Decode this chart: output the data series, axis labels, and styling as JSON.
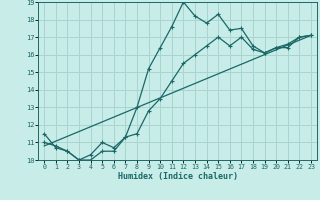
{
  "title": "",
  "xlabel": "Humidex (Indice chaleur)",
  "ylabel": "",
  "bg_color": "#c8ece8",
  "line_color": "#1a6868",
  "grid_color": "#aad4d0",
  "x_min": 0,
  "x_max": 23,
  "y_min": 10,
  "y_max": 19,
  "series1_x": [
    0,
    1,
    2,
    3,
    4,
    5,
    6,
    7,
    8,
    9,
    10,
    11,
    12,
    13,
    14,
    15,
    16,
    17,
    18,
    19,
    20,
    21,
    22,
    23
  ],
  "series1_y": [
    11.5,
    10.7,
    10.5,
    10.0,
    10.3,
    11.0,
    10.7,
    11.3,
    13.0,
    15.2,
    16.4,
    17.6,
    19.0,
    18.2,
    17.8,
    18.3,
    17.4,
    17.5,
    16.5,
    16.1,
    16.4,
    16.4,
    17.0,
    17.1
  ],
  "series2_x": [
    0,
    1,
    2,
    3,
    4,
    5,
    6,
    7,
    8,
    9,
    10,
    11,
    12,
    13,
    14,
    15,
    16,
    17,
    18,
    19,
    20,
    21,
    22,
    23
  ],
  "series2_y": [
    11.0,
    10.8,
    10.5,
    10.0,
    10.0,
    10.5,
    10.5,
    11.3,
    11.5,
    12.8,
    13.5,
    14.5,
    15.5,
    16.0,
    16.5,
    17.0,
    16.5,
    17.0,
    16.3,
    16.1,
    16.4,
    16.6,
    17.0,
    17.1
  ],
  "series3_x": [
    0,
    23
  ],
  "series3_y": [
    10.8,
    17.1
  ],
  "marker": "+",
  "linewidth": 0.9,
  "markersize": 3.5,
  "marker_lw": 0.8
}
